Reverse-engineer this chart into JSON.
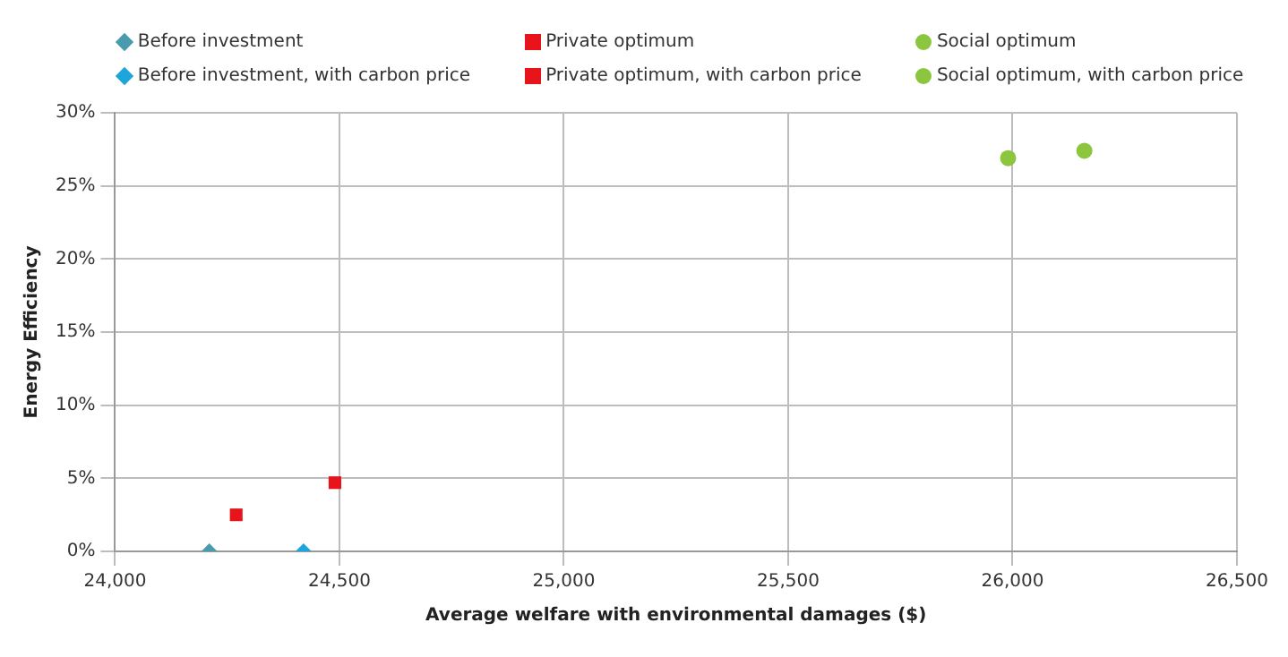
{
  "chart_data": {
    "type": "scatter",
    "xlabel": "Average welfare with environmental damages ($)",
    "ylabel": "Energy Efficiency",
    "xlim": [
      24000,
      26500
    ],
    "xticks": [
      {
        "value": 24000,
        "label": "24,000"
      },
      {
        "value": 24500,
        "label": "24,500"
      },
      {
        "value": 25000,
        "label": "25,000"
      },
      {
        "value": 25500,
        "label": "25,500"
      },
      {
        "value": 26000,
        "label": "26,000"
      },
      {
        "value": 26500,
        "label": "26,500"
      }
    ],
    "ylim": [
      0,
      30
    ],
    "yticks": [
      {
        "value": 0,
        "label": "0%"
      },
      {
        "value": 5,
        "label": "5%"
      },
      {
        "value": 10,
        "label": "10%"
      },
      {
        "value": 15,
        "label": "15%"
      },
      {
        "value": 20,
        "label": "20%"
      },
      {
        "value": 25,
        "label": "25%"
      },
      {
        "value": 30,
        "label": "30%"
      }
    ],
    "grid": true,
    "legend": "top",
    "series": [
      {
        "name": "Before investment",
        "color": "#4a9bb0",
        "marker": "diamond",
        "x": [
          24210
        ],
        "values": [
          0
        ]
      },
      {
        "name": "Private optimum",
        "color": "#e8141c",
        "marker": "square",
        "x": [
          24270
        ],
        "values": [
          2.5
        ]
      },
      {
        "name": "Social optimum",
        "color": "#8cc63f",
        "marker": "circle",
        "x": [
          25990
        ],
        "values": [
          26.9
        ]
      },
      {
        "name": "Before investment, with carbon price",
        "color": "#1ea5dc",
        "marker": "diamond",
        "x": [
          24420
        ],
        "values": [
          0
        ]
      },
      {
        "name": "Private optimum, with carbon price",
        "color": "#e8141c",
        "marker": "square",
        "x": [
          24490
        ],
        "values": [
          4.7
        ]
      },
      {
        "name": "Social optimum, with carbon price",
        "color": "#8cc63f",
        "marker": "circle",
        "x": [
          26160
        ],
        "values": [
          27.4
        ]
      }
    ]
  }
}
